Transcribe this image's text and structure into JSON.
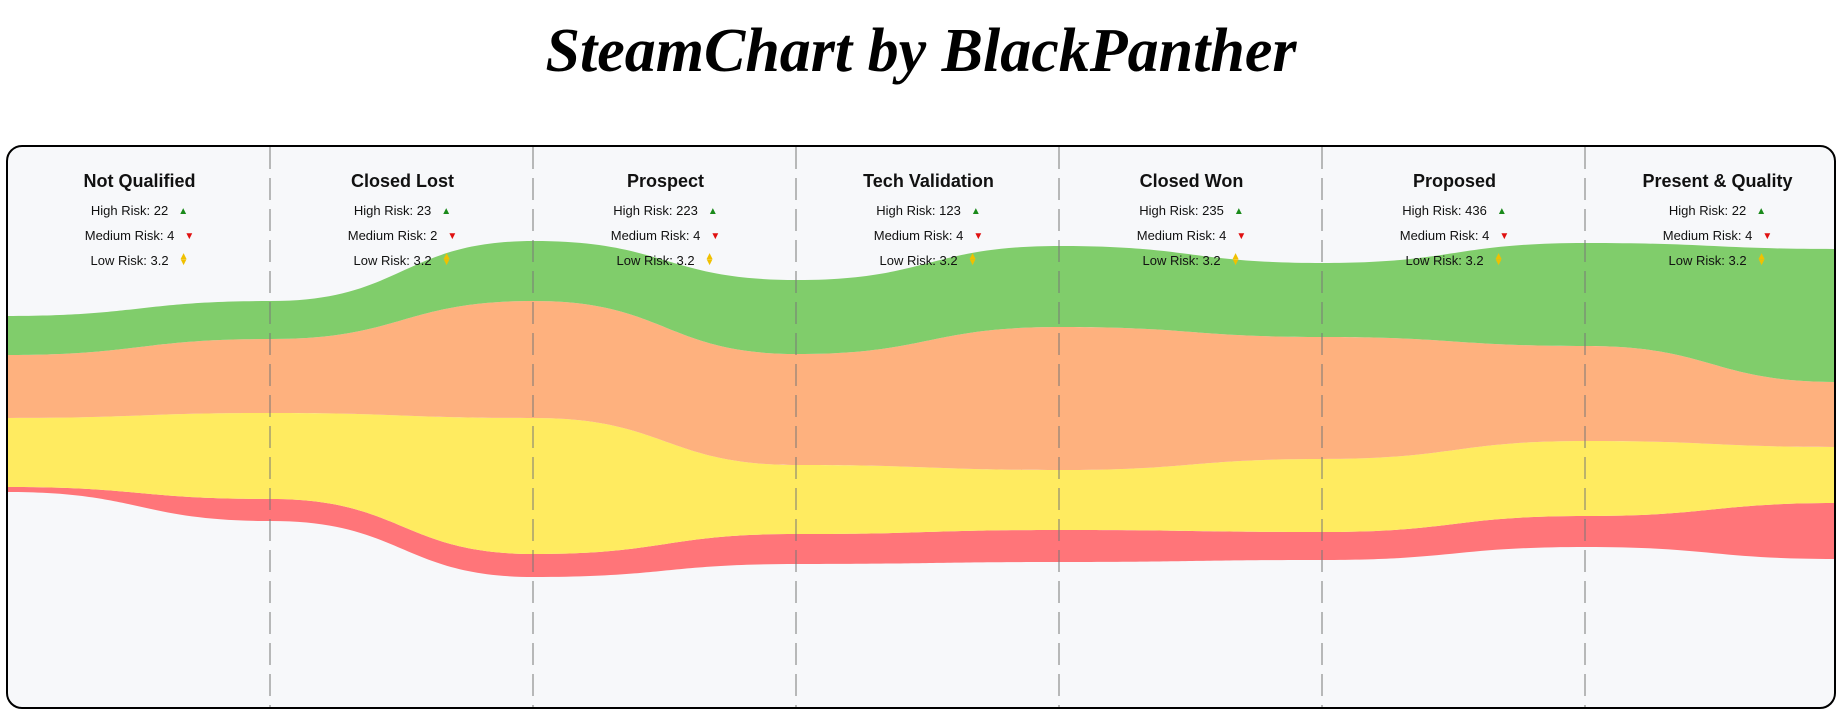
{
  "title": "SteamChart by BlackPanther",
  "chart_data": {
    "type": "area",
    "stages": [
      {
        "name": "Not Qualified",
        "high": "High Risk: 22",
        "medium": "Medium Risk: 4",
        "low": "Low Risk: 3.2"
      },
      {
        "name": "Closed Lost",
        "high": "High Risk: 23",
        "medium": "Medium Risk: 2",
        "low": "Low Risk: 3.2"
      },
      {
        "name": "Prospect",
        "high": "High Risk: 223",
        "medium": "Medium Risk: 4",
        "low": "Low Risk: 3.2"
      },
      {
        "name": "Tech Validation",
        "high": "High Risk: 123",
        "medium": "Medium Risk: 4",
        "low": "Low Risk: 3.2"
      },
      {
        "name": "Closed Won",
        "high": "High Risk: 235",
        "medium": "Medium Risk: 4",
        "low": "Low Risk: 3.2"
      },
      {
        "name": "Proposed",
        "high": "High Risk: 436",
        "medium": "Medium Risk: 4",
        "low": "Low Risk: 3.2"
      },
      {
        "name": "Present & Quality",
        "high": "High Risk: 22",
        "medium": "Medium Risk: 4",
        "low": "Low Risk: 3.2"
      }
    ],
    "bands": [
      {
        "color": "#80cd6b",
        "values": [
          39,
          38,
          60,
          74,
          81,
          74,
          103,
          133
        ]
      },
      {
        "color": "#feb17e",
        "values": [
          63,
          74,
          117,
          111,
          143,
          122,
          95,
          65
        ]
      },
      {
        "color": "#ffeb60",
        "values": [
          69,
          86,
          136,
          69,
          60,
          73,
          75,
          56
        ]
      },
      {
        "color": "#ff7579",
        "values": [
          5,
          22,
          23,
          30,
          32,
          28,
          31,
          56
        ]
      }
    ],
    "baseline": [
      490,
      519,
      575,
      562,
      560,
      558,
      545,
      557
    ],
    "risk_icons": {
      "high": "up-arrow",
      "medium": "down-arrow",
      "low": "up-down-arrow"
    },
    "grid": "dashed vertical separators between stages"
  }
}
